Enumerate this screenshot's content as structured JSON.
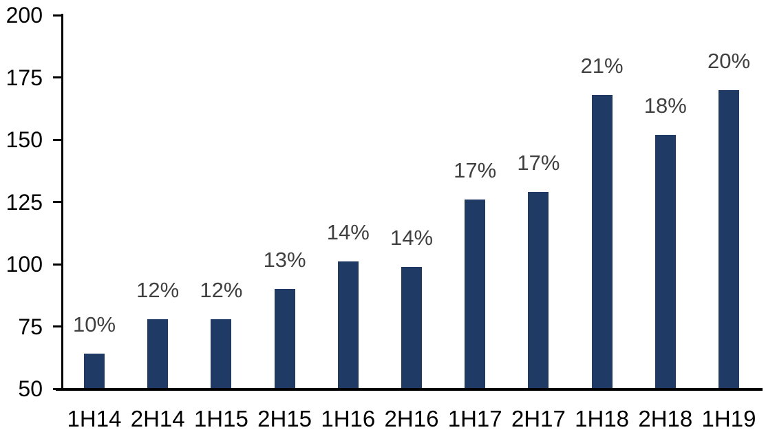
{
  "chart_data": {
    "type": "bar",
    "categories": [
      "1H14",
      "2H14",
      "1H15",
      "2H15",
      "1H16",
      "2H16",
      "1H17",
      "2H17",
      "1H18",
      "2H18",
      "1H19"
    ],
    "values": [
      64,
      78,
      78,
      90,
      101,
      99,
      126,
      129,
      168,
      152,
      170
    ],
    "bar_labels": [
      "10%",
      "12%",
      "12%",
      "13%",
      "14%",
      "14%",
      "17%",
      "17%",
      "21%",
      "18%",
      "20%"
    ],
    "title": "",
    "xlabel": "",
    "ylabel": "",
    "ylim": [
      50,
      200
    ],
    "yticks": [
      50,
      75,
      100,
      125,
      150,
      175,
      200
    ],
    "grid": false,
    "legend": false,
    "bar_color": "#1F3A64",
    "bar_label_color": "#404040",
    "axis_color": "#000000",
    "background_color": "#FFFFFF"
  }
}
